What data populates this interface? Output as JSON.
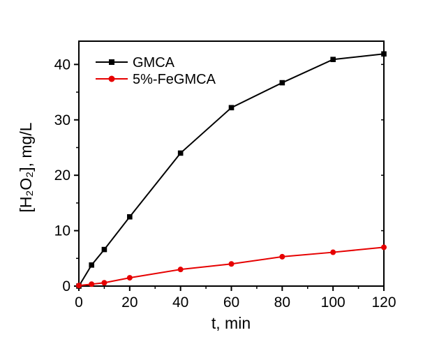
{
  "chart_data": {
    "type": "line",
    "title": "",
    "xlabel": "t, min",
    "ylabel": "[H₂O₂], mg/L",
    "xlim": [
      0,
      120
    ],
    "ylim": [
      0,
      44.2
    ],
    "grid": false,
    "legend_position": "top-left-inside",
    "background": "#ffffff",
    "axis_color": "#000000",
    "x_major_ticks": [
      0,
      20,
      40,
      60,
      80,
      100,
      120
    ],
    "x_minor_ticks": [
      10,
      30,
      50,
      70,
      90,
      110
    ],
    "y_major_ticks": [
      0,
      10,
      20,
      30,
      40
    ],
    "y_minor_ticks": [
      5,
      15,
      25,
      35
    ],
    "series": [
      {
        "name": "GMCA",
        "color": "#000000",
        "marker": "square",
        "x": [
          0,
          5,
          10,
          20,
          40,
          60,
          80,
          100,
          120
        ],
        "values": [
          0,
          3.8,
          6.6,
          12.5,
          24.0,
          32.2,
          36.7,
          40.9,
          41.9
        ]
      },
      {
        "name": "5%-FeGMCA",
        "color": "#e60000",
        "marker": "circle",
        "x": [
          0,
          5,
          10,
          20,
          40,
          60,
          80,
          100,
          120
        ],
        "values": [
          0.1,
          0.35,
          0.6,
          1.5,
          3.0,
          4.0,
          5.3,
          6.1,
          7.0
        ]
      }
    ]
  }
}
